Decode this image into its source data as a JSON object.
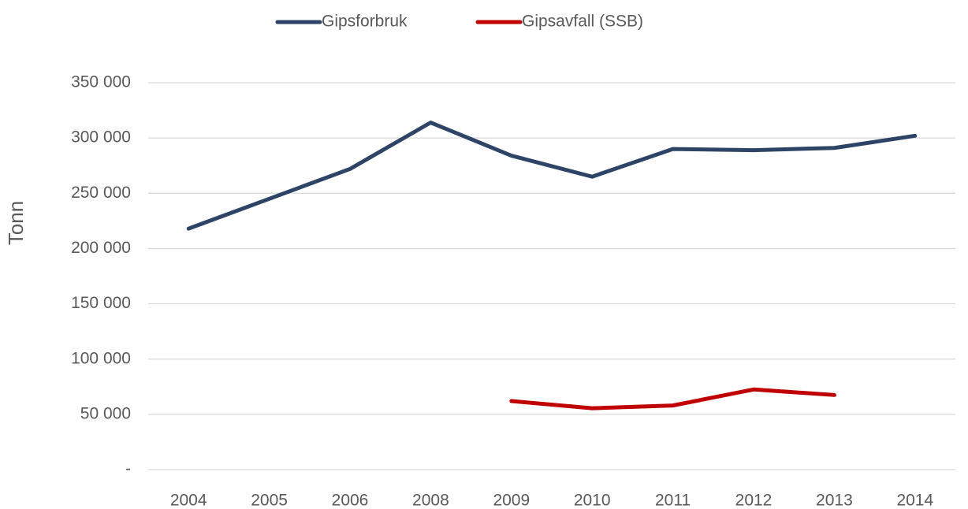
{
  "chart_data": {
    "type": "line",
    "y_label": "Tonn",
    "categories": [
      "2004",
      "2005",
      "2006",
      "2008",
      "2009",
      "2010",
      "2011",
      "2012",
      "2013",
      "2014"
    ],
    "series": [
      {
        "name": "Gipsforbruk",
        "color": "#2e4466",
        "values": [
          218000,
          245000,
          272000,
          314000,
          284000,
          265000,
          290000,
          289000,
          291000,
          302000
        ]
      },
      {
        "name": "Gipsavfall (SSB)",
        "color": "#c00000",
        "values": [
          null,
          null,
          null,
          null,
          62000,
          55500,
          58000,
          72500,
          67500,
          null
        ]
      }
    ],
    "ylim": [
      0,
      350000
    ],
    "yticks": [
      {
        "value": 0,
        "label": "-"
      },
      {
        "value": 50000,
        "label": "50 000"
      },
      {
        "value": 100000,
        "label": "100 000"
      },
      {
        "value": 150000,
        "label": "150 000"
      },
      {
        "value": 200000,
        "label": "200 000"
      },
      {
        "value": 250000,
        "label": "250 000"
      },
      {
        "value": 300000,
        "label": "300 000"
      },
      {
        "value": 350000,
        "label": "350 000"
      }
    ],
    "grid": true,
    "legend": "top"
  }
}
